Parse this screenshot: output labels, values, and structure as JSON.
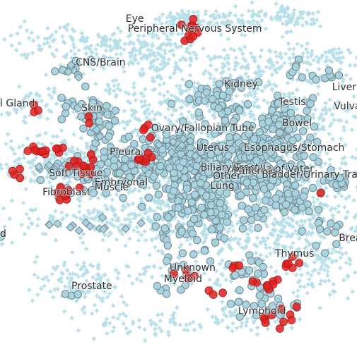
{
  "chart_data": {
    "type": "scatter",
    "title": "",
    "xlabel": "",
    "ylabel": "",
    "grid": false,
    "legend": "none",
    "colors": {
      "background_points": "#b6dfea",
      "sample_fill": "#a9d3df",
      "sample_stroke": "#6f8790",
      "highlight_fill": "#e02020",
      "highlight_stroke": "#b01818",
      "label_text": "#2f2f2f"
    },
    "cluster_labels": [
      {
        "text": "Eye",
        "x": 0.352,
        "y": 0.063
      },
      {
        "text": "Peripheral Nervous System",
        "x": 0.358,
        "y": 0.091
      },
      {
        "text": "CNS/Brain",
        "x": 0.212,
        "y": 0.188
      },
      {
        "text": "Kidney",
        "x": 0.628,
        "y": 0.249
      },
      {
        "text": "Liver",
        "x": 0.93,
        "y": 0.259
      },
      {
        "text": "l Gland",
        "x": 0.0,
        "y": 0.305
      },
      {
        "text": "Testis",
        "x": 0.78,
        "y": 0.301
      },
      {
        "text": "Skin",
        "x": 0.228,
        "y": 0.318
      },
      {
        "text": "Vulva",
        "x": 0.935,
        "y": 0.313
      },
      {
        "text": "Bowel",
        "x": 0.79,
        "y": 0.362
      },
      {
        "text": "Ovary/Fallopian Tube",
        "x": 0.423,
        "y": 0.376
      },
      {
        "text": "Esophagus/Stomach",
        "x": 0.683,
        "y": 0.432
      },
      {
        "text": "Pleura",
        "x": 0.307,
        "y": 0.444
      },
      {
        "text": "Uterus",
        "x": 0.55,
        "y": 0.432
      },
      {
        "text": "Biliary Tract",
        "x": 0.562,
        "y": 0.489
      },
      {
        "text": "Ampulla of Vater",
        "x": 0.648,
        "y": 0.493
      },
      {
        "text": "Pancreas",
        "x": 0.654,
        "y": 0.499
      },
      {
        "text": "Soft Tissue",
        "x": 0.137,
        "y": 0.505
      },
      {
        "text": "Other",
        "x": 0.596,
        "y": 0.513
      },
      {
        "text": "Bladder/Urinary Tract",
        "x": 0.733,
        "y": 0.509
      },
      {
        "text": "Embryonal",
        "x": 0.265,
        "y": 0.531
      },
      {
        "text": "Lung",
        "x": 0.589,
        "y": 0.541
      },
      {
        "text": "Muscle",
        "x": 0.265,
        "y": 0.545
      },
      {
        "text": "Fibroblast",
        "x": 0.119,
        "y": 0.56
      },
      {
        "text": "d",
        "x": 0.0,
        "y": 0.679
      },
      {
        "text": "Breast",
        "x": 0.949,
        "y": 0.691
      },
      {
        "text": "Thymus",
        "x": 0.77,
        "y": 0.735
      },
      {
        "text": "Unknown",
        "x": 0.475,
        "y": 0.776
      },
      {
        "text": "Myeloid",
        "x": 0.459,
        "y": 0.808
      },
      {
        "text": "Prostate",
        "x": 0.2,
        "y": 0.828
      },
      {
        "text": "Lymphoid",
        "x": 0.667,
        "y": 0.9
      }
    ],
    "background_clouds": [
      {
        "x": 0.5,
        "y": 0.06,
        "sx": 0.03,
        "sy": 0.015,
        "n": 60
      },
      {
        "x": 0.64,
        "y": 0.06,
        "sx": 0.08,
        "sy": 0.02,
        "n": 100
      },
      {
        "x": 0.82,
        "y": 0.05,
        "sx": 0.04,
        "sy": 0.015,
        "n": 70
      },
      {
        "x": 0.29,
        "y": 0.13,
        "sx": 0.15,
        "sy": 0.03,
        "n": 200
      },
      {
        "x": 0.45,
        "y": 0.17,
        "sx": 0.08,
        "sy": 0.04,
        "n": 130
      },
      {
        "x": 0.7,
        "y": 0.2,
        "sx": 0.07,
        "sy": 0.03,
        "n": 110
      },
      {
        "x": 0.9,
        "y": 0.18,
        "sx": 0.07,
        "sy": 0.03,
        "n": 100
      },
      {
        "x": 0.08,
        "y": 0.3,
        "sx": 0.06,
        "sy": 0.02,
        "n": 60
      },
      {
        "x": 0.6,
        "y": 0.28,
        "sx": 0.15,
        "sy": 0.03,
        "n": 180
      },
      {
        "x": 0.88,
        "y": 0.33,
        "sx": 0.08,
        "sy": 0.04,
        "n": 120
      },
      {
        "x": 0.5,
        "y": 0.35,
        "sx": 0.18,
        "sy": 0.06,
        "n": 280
      },
      {
        "x": 0.15,
        "y": 0.46,
        "sx": 0.12,
        "sy": 0.03,
        "n": 160
      },
      {
        "x": 0.6,
        "y": 0.47,
        "sx": 0.25,
        "sy": 0.05,
        "n": 400
      },
      {
        "x": 0.48,
        "y": 0.58,
        "sx": 0.2,
        "sy": 0.05,
        "n": 300
      },
      {
        "x": 0.85,
        "y": 0.62,
        "sx": 0.1,
        "sy": 0.05,
        "n": 200
      },
      {
        "x": 0.35,
        "y": 0.64,
        "sx": 0.18,
        "sy": 0.03,
        "n": 180
      },
      {
        "x": 0.7,
        "y": 0.7,
        "sx": 0.15,
        "sy": 0.04,
        "n": 160
      },
      {
        "x": 0.9,
        "y": 0.78,
        "sx": 0.06,
        "sy": 0.04,
        "n": 80
      },
      {
        "x": 0.22,
        "y": 0.81,
        "sx": 0.06,
        "sy": 0.04,
        "n": 120
      },
      {
        "x": 0.5,
        "y": 0.79,
        "sx": 0.08,
        "sy": 0.02,
        "n": 70
      },
      {
        "x": 0.7,
        "y": 0.91,
        "sx": 0.07,
        "sy": 0.02,
        "n": 80
      },
      {
        "x": 0.42,
        "y": 0.93,
        "sx": 0.08,
        "sy": 0.02,
        "n": 60
      }
    ],
    "sample_clusters": [
      {
        "x": 0.19,
        "y": 0.198,
        "sx": 0.03,
        "sy": 0.012,
        "n": 8
      },
      {
        "x": 0.84,
        "y": 0.2,
        "sx": 0.02,
        "sy": 0.015,
        "n": 6
      },
      {
        "x": 0.94,
        "y": 0.23,
        "sx": 0.03,
        "sy": 0.015,
        "n": 8
      },
      {
        "x": 0.66,
        "y": 0.24,
        "sx": 0.03,
        "sy": 0.015,
        "n": 10
      },
      {
        "x": 0.24,
        "y": 0.3,
        "sx": 0.04,
        "sy": 0.02,
        "n": 20
      },
      {
        "x": 0.29,
        "y": 0.37,
        "sx": 0.04,
        "sy": 0.03,
        "n": 30
      },
      {
        "x": 0.6,
        "y": 0.29,
        "sx": 0.05,
        "sy": 0.03,
        "n": 40
      },
      {
        "x": 0.8,
        "y": 0.36,
        "sx": 0.05,
        "sy": 0.04,
        "n": 70
      },
      {
        "x": 0.46,
        "y": 0.4,
        "sx": 0.05,
        "sy": 0.02,
        "n": 30
      },
      {
        "x": 0.68,
        "y": 0.42,
        "sx": 0.08,
        "sy": 0.03,
        "n": 80
      },
      {
        "x": 0.37,
        "y": 0.49,
        "sx": 0.09,
        "sy": 0.03,
        "n": 110
      },
      {
        "x": 0.56,
        "y": 0.48,
        "sx": 0.06,
        "sy": 0.03,
        "n": 110
      },
      {
        "x": 0.75,
        "y": 0.49,
        "sx": 0.08,
        "sy": 0.04,
        "n": 110
      },
      {
        "x": 0.56,
        "y": 0.6,
        "sx": 0.07,
        "sy": 0.05,
        "n": 130
      },
      {
        "x": 0.79,
        "y": 0.58,
        "sx": 0.05,
        "sy": 0.03,
        "n": 40
      },
      {
        "x": 0.96,
        "y": 0.52,
        "sx": 0.03,
        "sy": 0.02,
        "n": 15
      },
      {
        "x": 0.93,
        "y": 0.66,
        "sx": 0.03,
        "sy": 0.03,
        "n": 12
      },
      {
        "x": 0.19,
        "y": 0.49,
        "sx": 0.03,
        "sy": 0.01,
        "n": 10
      },
      {
        "x": 0.26,
        "y": 0.51,
        "sx": 0.03,
        "sy": 0.02,
        "n": 15
      },
      {
        "x": 0.7,
        "y": 0.79,
        "sx": 0.03,
        "sy": 0.03,
        "n": 20
      },
      {
        "x": 0.73,
        "y": 0.87,
        "sx": 0.04,
        "sy": 0.03,
        "n": 25
      },
      {
        "x": 0.51,
        "y": 0.78,
        "sx": 0.03,
        "sy": 0.02,
        "n": 12
      },
      {
        "x": 0.18,
        "y": 0.83,
        "sx": 0.02,
        "sy": 0.01,
        "n": 3
      },
      {
        "x": 0.46,
        "y": 0.83,
        "sx": 0.02,
        "sy": 0.01,
        "n": 3
      },
      {
        "x": 0.18,
        "y": 0.55,
        "sx": 0.02,
        "sy": 0.01,
        "n": 5
      },
      {
        "x": 0.0,
        "y": 0.68,
        "sx": 0.01,
        "sy": 0.01,
        "n": 2
      }
    ],
    "sample_diamonds": [
      {
        "x": 0.26,
        "y": 0.65,
        "sx": 0.07,
        "sy": 0.008,
        "n": 14
      },
      {
        "x": 0.14,
        "y": 0.48,
        "sx": 0.03,
        "sy": 0.01,
        "n": 8
      },
      {
        "x": 0.19,
        "y": 0.195,
        "sx": 0.02,
        "sy": 0.01,
        "n": 4
      },
      {
        "x": 0.5,
        "y": 0.42,
        "sx": 0.04,
        "sy": 0.02,
        "n": 10
      },
      {
        "x": 0.28,
        "y": 0.39,
        "sx": 0.02,
        "sy": 0.01,
        "n": 4
      }
    ],
    "highlight_clusters": [
      {
        "x": 0.535,
        "y": 0.09,
        "sx": 0.012,
        "sy": 0.015,
        "n": 14
      },
      {
        "x": 0.1,
        "y": 0.31,
        "sx": 0.01,
        "sy": 0.008,
        "n": 3
      },
      {
        "x": 0.13,
        "y": 0.43,
        "sx": 0.03,
        "sy": 0.01,
        "n": 12
      },
      {
        "x": 0.04,
        "y": 0.49,
        "sx": 0.015,
        "sy": 0.01,
        "n": 4
      },
      {
        "x": 0.23,
        "y": 0.49,
        "sx": 0.02,
        "sy": 0.02,
        "n": 12
      },
      {
        "x": 0.19,
        "y": 0.55,
        "sx": 0.02,
        "sy": 0.01,
        "n": 8
      },
      {
        "x": 0.4,
        "y": 0.45,
        "sx": 0.015,
        "sy": 0.01,
        "n": 8
      },
      {
        "x": 0.41,
        "y": 0.37,
        "sx": 0.01,
        "sy": 0.01,
        "n": 4
      },
      {
        "x": 0.25,
        "y": 0.34,
        "sx": 0.005,
        "sy": 0.005,
        "n": 2
      },
      {
        "x": 0.82,
        "y": 0.745,
        "sx": 0.015,
        "sy": 0.01,
        "n": 6
      },
      {
        "x": 0.75,
        "y": 0.815,
        "sx": 0.015,
        "sy": 0.01,
        "n": 8
      },
      {
        "x": 0.6,
        "y": 0.84,
        "sx": 0.01,
        "sy": 0.005,
        "n": 3
      },
      {
        "x": 0.52,
        "y": 0.78,
        "sx": 0.015,
        "sy": 0.01,
        "n": 4
      },
      {
        "x": 0.66,
        "y": 0.76,
        "sx": 0.01,
        "sy": 0.005,
        "n": 3
      },
      {
        "x": 0.77,
        "y": 0.9,
        "sx": 0.03,
        "sy": 0.02,
        "n": 10
      },
      {
        "x": 0.9,
        "y": 0.56,
        "sx": 0.005,
        "sy": 0.005,
        "n": 1
      }
    ]
  }
}
